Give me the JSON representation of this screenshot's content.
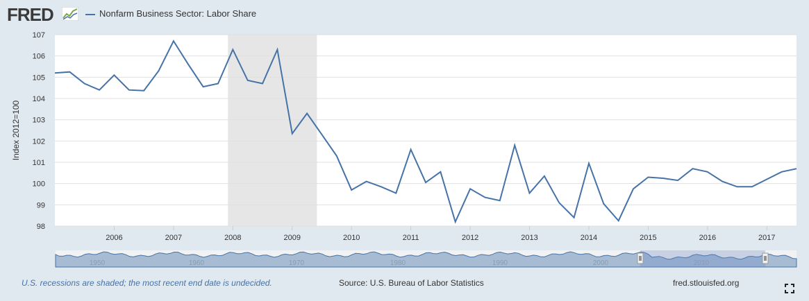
{
  "header": {
    "logo_text": "FRED",
    "legend_label": "Nonfarm Business Sector: Labor Share",
    "series_color": "#4572a7"
  },
  "footer": {
    "recession_note": "U.S. recessions are shaded; the most recent end date is undecided.",
    "source": "Source: U.S. Bureau of Labor Statistics",
    "site": "fred.stlouisfed.org"
  },
  "navigator": {
    "year_labels": [
      "1950",
      "1960",
      "1970",
      "1980",
      "1990",
      "2000",
      "2010"
    ]
  },
  "chart_data": {
    "type": "line",
    "title": "Nonfarm Business Sector: Labor Share",
    "ylabel": "Index 2012=100",
    "xlabel": "",
    "ylim": [
      98,
      107
    ],
    "yticks": [
      98,
      99,
      100,
      101,
      102,
      103,
      104,
      105,
      106,
      107
    ],
    "xlim": [
      "2005-01-01",
      "2017-07-01"
    ],
    "xtick_labels": [
      "2006",
      "2007",
      "2008",
      "2009",
      "2010",
      "2011",
      "2012",
      "2013",
      "2014",
      "2015",
      "2016",
      "2017"
    ],
    "grid": "horizontal",
    "recession_shading": [
      [
        "2007-12-01",
        "2009-06-01"
      ]
    ],
    "series": [
      {
        "name": "Nonfarm Business Sector: Labor Share",
        "color": "#4572a7",
        "x": [
          "2005-01-01",
          "2005-04-01",
          "2005-07-01",
          "2005-10-01",
          "2006-01-01",
          "2006-04-01",
          "2006-07-01",
          "2006-10-01",
          "2007-01-01",
          "2007-04-01",
          "2007-07-01",
          "2007-10-01",
          "2008-01-01",
          "2008-04-01",
          "2008-07-01",
          "2008-10-01",
          "2009-01-01",
          "2009-04-01",
          "2009-07-01",
          "2009-10-01",
          "2010-01-01",
          "2010-04-01",
          "2010-07-01",
          "2010-10-01",
          "2011-01-01",
          "2011-04-01",
          "2011-07-01",
          "2011-10-01",
          "2012-01-01",
          "2012-04-01",
          "2012-07-01",
          "2012-10-01",
          "2013-01-01",
          "2013-04-01",
          "2013-07-01",
          "2013-10-01",
          "2014-01-01",
          "2014-04-01",
          "2014-07-01",
          "2014-10-01",
          "2015-01-01",
          "2015-04-01",
          "2015-07-01",
          "2015-10-01",
          "2016-01-01",
          "2016-04-01",
          "2016-07-01",
          "2016-10-01",
          "2017-01-01",
          "2017-04-01",
          "2017-07-01"
        ],
        "values": [
          105.2,
          105.25,
          104.7,
          104.4,
          105.1,
          104.4,
          104.37,
          105.3,
          106.7,
          105.6,
          104.55,
          104.7,
          106.3,
          104.85,
          104.7,
          106.3,
          102.35,
          103.3,
          102.3,
          101.3,
          99.7,
          100.1,
          99.85,
          99.55,
          101.6,
          100.05,
          100.55,
          98.2,
          99.75,
          99.35,
          99.2,
          101.8,
          99.55,
          100.35,
          99.1,
          98.4,
          100.95,
          99.05,
          98.25,
          99.75,
          100.3,
          100.25,
          100.15,
          100.7,
          100.55,
          100.1,
          99.85,
          99.85,
          100.2,
          100.55,
          100.7
        ]
      }
    ]
  }
}
